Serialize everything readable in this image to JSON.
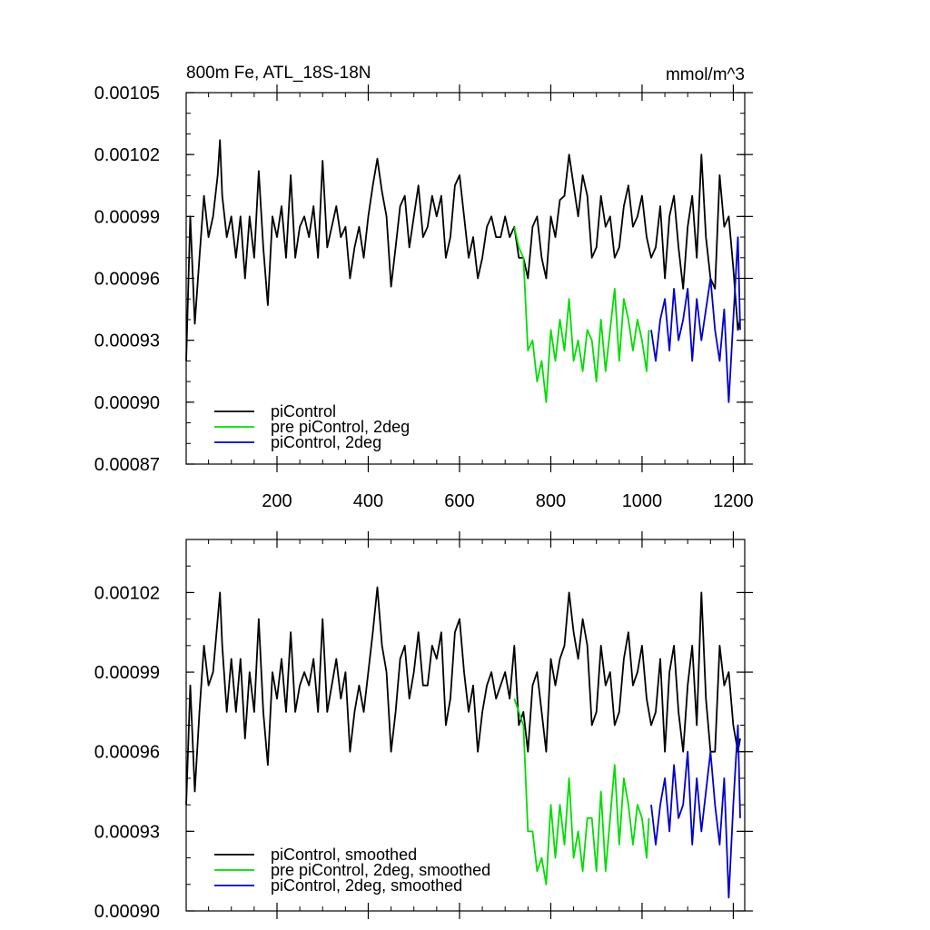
{
  "chart_data": [
    {
      "type": "line",
      "title": "800m Fe, ATL_18S-18N",
      "units": "mmol/m^3",
      "xlabel": "",
      "ylabel": "",
      "xlim": [
        1,
        1225
      ],
      "ylim": [
        0.00087,
        0.00105
      ],
      "x_ticks": [
        200,
        400,
        600,
        800,
        1000,
        1200
      ],
      "x_tick_labels": [
        "200",
        "400",
        "600",
        "800",
        "1000",
        "1200"
      ],
      "y_ticks": [
        0.00087,
        0.0009,
        0.00093,
        0.00096,
        0.00099,
        0.00102,
        0.00105
      ],
      "y_tick_labels": [
        "0.00087",
        "0.00090",
        "0.00093",
        "0.00096",
        "0.00099",
        "0.00102",
        "0.00105"
      ],
      "legend_position": "bottom-left",
      "series": [
        {
          "name": "piControl",
          "color": "#000000",
          "x": [
            1,
            10,
            20,
            30,
            40,
            50,
            60,
            70,
            75,
            80,
            90,
            100,
            110,
            120,
            130,
            140,
            150,
            160,
            170,
            180,
            190,
            200,
            210,
            220,
            230,
            240,
            250,
            260,
            270,
            280,
            290,
            300,
            310,
            320,
            330,
            340,
            350,
            360,
            370,
            380,
            390,
            400,
            410,
            420,
            430,
            440,
            450,
            460,
            470,
            480,
            490,
            500,
            510,
            520,
            530,
            540,
            550,
            560,
            570,
            580,
            590,
            600,
            610,
            620,
            630,
            640,
            650,
            660,
            670,
            680,
            690,
            700,
            710,
            720,
            730,
            740,
            750,
            760,
            770,
            780,
            790,
            800,
            810,
            820,
            830,
            840,
            850,
            860,
            870,
            880,
            890,
            900,
            910,
            920,
            930,
            940,
            950,
            960,
            970,
            980,
            990,
            1000,
            1010,
            1020,
            1030,
            1040,
            1050,
            1060,
            1070,
            1080,
            1090,
            1100,
            1110,
            1120,
            1130,
            1140,
            1150,
            1160,
            1170,
            1180,
            1190,
            1200,
            1210,
            1215
          ],
          "values": [
            0.00092,
            0.00099,
            0.000938,
            0.00097,
            0.001,
            0.00098,
            0.00099,
            0.00101,
            0.001027,
            0.001,
            0.00098,
            0.00099,
            0.00097,
            0.00099,
            0.00096,
            0.00099,
            0.00097,
            0.001012,
            0.000975,
            0.000947,
            0.00099,
            0.00098,
            0.000995,
            0.00097,
            0.00101,
            0.00097,
            0.000985,
            0.00099,
            0.00098,
            0.000995,
            0.00097,
            0.001017,
            0.000975,
            0.000985,
            0.000995,
            0.00098,
            0.000985,
            0.00096,
            0.000975,
            0.000985,
            0.00097,
            0.00099,
            0.001005,
            0.001018,
            0.001002,
            0.00099,
            0.000956,
            0.000975,
            0.000995,
            0.001,
            0.000975,
            0.00099,
            0.001005,
            0.00098,
            0.000985,
            0.001,
            0.00099,
            0.001,
            0.00097,
            0.00098,
            0.001005,
            0.00101,
            0.00099,
            0.00097,
            0.00098,
            0.00096,
            0.00097,
            0.000985,
            0.00099,
            0.00098,
            0.00098,
            0.00099,
            0.00098,
            0.000985,
            0.00097,
            0.00097,
            0.00096,
            0.000985,
            0.00099,
            0.00097,
            0.00096,
            0.00099,
            0.00098,
            0.000998,
            0.001,
            0.00102,
            0.001005,
            0.00099,
            0.00101,
            0.001,
            0.00097,
            0.000975,
            0.001,
            0.000985,
            0.00099,
            0.00097,
            0.000975,
            0.000995,
            0.001005,
            0.000985,
            0.00099,
            0.001,
            0.00098,
            0.00097,
            0.000975,
            0.000995,
            0.00096,
            0.00099,
            0.001,
            0.000975,
            0.000955,
            0.000985,
            0.001,
            0.00097,
            0.00102,
            0.00098,
            0.00096,
            0.000955,
            0.00101,
            0.000985,
            0.00099,
            0.000965,
            0.000935,
            0.00094
          ]
        },
        {
          "name": "pre piControl, 2deg",
          "color": "#00dd00",
          "x": [
            720,
            730,
            740,
            750,
            760,
            770,
            780,
            790,
            800,
            810,
            820,
            830,
            840,
            850,
            860,
            870,
            880,
            890,
            900,
            910,
            920,
            930,
            940,
            950,
            960,
            970,
            980,
            990,
            1000,
            1010,
            1015
          ],
          "values": [
            0.000985,
            0.000975,
            0.00097,
            0.000925,
            0.00093,
            0.00091,
            0.00092,
            0.0009,
            0.000935,
            0.00092,
            0.00094,
            0.000925,
            0.00095,
            0.00092,
            0.00093,
            0.000915,
            0.000935,
            0.00093,
            0.00091,
            0.00094,
            0.000915,
            0.000935,
            0.000955,
            0.00092,
            0.00095,
            0.00094,
            0.000925,
            0.00094,
            0.00093,
            0.000915,
            0.000935
          ]
        },
        {
          "name": "piControl, 2deg",
          "color": "#0000cc",
          "x": [
            1020,
            1030,
            1040,
            1050,
            1060,
            1070,
            1080,
            1090,
            1100,
            1110,
            1120,
            1130,
            1140,
            1150,
            1160,
            1170,
            1180,
            1190,
            1200,
            1210,
            1215
          ],
          "values": [
            0.000935,
            0.00092,
            0.00094,
            0.00095,
            0.000925,
            0.000955,
            0.00093,
            0.00094,
            0.000955,
            0.00092,
            0.00095,
            0.00093,
            0.000945,
            0.00096,
            0.000935,
            0.00092,
            0.000945,
            0.0009,
            0.00094,
            0.00098,
            0.000935
          ]
        }
      ]
    },
    {
      "type": "line",
      "title": "",
      "xlabel": "",
      "ylabel": "",
      "xlim": [
        1,
        1225
      ],
      "ylim": [
        0.0009,
        0.00104
      ],
      "x_ticks": [
        200,
        400,
        600,
        800,
        1000,
        1200
      ],
      "y_ticks": [
        0.0009,
        0.00093,
        0.00096,
        0.00099,
        0.00102
      ],
      "y_tick_labels": [
        "0.00090",
        "0.00093",
        "0.00096",
        "0.00099",
        "0.00102"
      ],
      "legend_position": "bottom-left",
      "series": [
        {
          "name": "piControl, smoothed",
          "color": "#000000",
          "x": [
            1,
            10,
            20,
            30,
            40,
            50,
            60,
            70,
            75,
            80,
            90,
            100,
            110,
            120,
            130,
            140,
            150,
            160,
            170,
            180,
            190,
            200,
            210,
            220,
            230,
            240,
            250,
            260,
            270,
            280,
            290,
            300,
            310,
            320,
            330,
            340,
            350,
            360,
            370,
            380,
            390,
            400,
            410,
            420,
            430,
            440,
            450,
            460,
            470,
            480,
            490,
            500,
            510,
            520,
            530,
            540,
            550,
            560,
            570,
            580,
            590,
            600,
            610,
            620,
            630,
            640,
            650,
            660,
            670,
            680,
            690,
            700,
            710,
            720,
            730,
            740,
            750,
            760,
            770,
            780,
            790,
            800,
            810,
            820,
            830,
            840,
            850,
            860,
            870,
            880,
            890,
            900,
            910,
            920,
            930,
            940,
            950,
            960,
            970,
            980,
            990,
            1000,
            1010,
            1020,
            1030,
            1040,
            1050,
            1060,
            1070,
            1080,
            1090,
            1100,
            1110,
            1120,
            1130,
            1140,
            1150,
            1160,
            1170,
            1180,
            1190,
            1200,
            1210,
            1215
          ],
          "values": [
            0.00094,
            0.000985,
            0.000945,
            0.000975,
            0.001,
            0.000985,
            0.00099,
            0.00101,
            0.00102,
            0.001,
            0.000975,
            0.000995,
            0.000975,
            0.000995,
            0.000965,
            0.00099,
            0.000975,
            0.00101,
            0.000975,
            0.000955,
            0.00099,
            0.00098,
            0.000995,
            0.000975,
            0.001005,
            0.000975,
            0.000985,
            0.00099,
            0.000985,
            0.000995,
            0.000975,
            0.00101,
            0.000975,
            0.000985,
            0.000995,
            0.00098,
            0.00099,
            0.00096,
            0.000975,
            0.000985,
            0.000975,
            0.00099,
            0.001005,
            0.001022,
            0.001,
            0.00099,
            0.00096,
            0.000975,
            0.000995,
            0.001,
            0.00098,
            0.00099,
            0.001005,
            0.000985,
            0.000985,
            0.001,
            0.000995,
            0.001005,
            0.00097,
            0.00098,
            0.001005,
            0.00101,
            0.00099,
            0.000975,
            0.000985,
            0.00096,
            0.000975,
            0.000985,
            0.00099,
            0.00098,
            0.000985,
            0.00099,
            0.00098,
            0.001,
            0.00097,
            0.000975,
            0.00096,
            0.000985,
            0.00099,
            0.000975,
            0.00096,
            0.000995,
            0.000985,
            0.000995,
            0.001,
            0.00102,
            0.001005,
            0.000995,
            0.00101,
            0.001,
            0.00097,
            0.000975,
            0.001,
            0.000985,
            0.00099,
            0.00097,
            0.000975,
            0.000995,
            0.001005,
            0.000985,
            0.00099,
            0.001,
            0.00098,
            0.00097,
            0.000975,
            0.000995,
            0.00096,
            0.00099,
            0.001,
            0.000975,
            0.00096,
            0.000985,
            0.001,
            0.00097,
            0.00102,
            0.00098,
            0.00096,
            0.00096,
            0.001,
            0.000985,
            0.00099,
            0.00097,
            0.00096,
            0.000965
          ]
        },
        {
          "name": "pre piControl, 2deg, smoothed",
          "color": "#00dd00",
          "x": [
            720,
            730,
            740,
            750,
            760,
            770,
            780,
            790,
            800,
            810,
            820,
            830,
            840,
            850,
            860,
            870,
            880,
            890,
            900,
            910,
            920,
            930,
            940,
            950,
            960,
            970,
            980,
            990,
            1000,
            1010,
            1015
          ],
          "values": [
            0.00098,
            0.000975,
            0.00097,
            0.00093,
            0.00093,
            0.000915,
            0.00092,
            0.00091,
            0.00094,
            0.00092,
            0.00094,
            0.000925,
            0.00095,
            0.00092,
            0.00093,
            0.000915,
            0.000935,
            0.000935,
            0.000915,
            0.000945,
            0.000915,
            0.000935,
            0.000955,
            0.000925,
            0.00095,
            0.00094,
            0.000925,
            0.00094,
            0.000935,
            0.00092,
            0.000935
          ]
        },
        {
          "name": "piControl, 2deg, smoothed",
          "color": "#0000cc",
          "x": [
            1020,
            1030,
            1040,
            1050,
            1060,
            1070,
            1080,
            1090,
            1100,
            1110,
            1120,
            1130,
            1140,
            1150,
            1160,
            1170,
            1180,
            1190,
            1200,
            1210,
            1215
          ],
          "values": [
            0.00094,
            0.000925,
            0.00094,
            0.00095,
            0.00093,
            0.000955,
            0.000935,
            0.00094,
            0.00096,
            0.000925,
            0.00095,
            0.00093,
            0.000945,
            0.00096,
            0.00094,
            0.000925,
            0.00095,
            0.000905,
            0.00094,
            0.00097,
            0.000935
          ]
        }
      ]
    }
  ]
}
